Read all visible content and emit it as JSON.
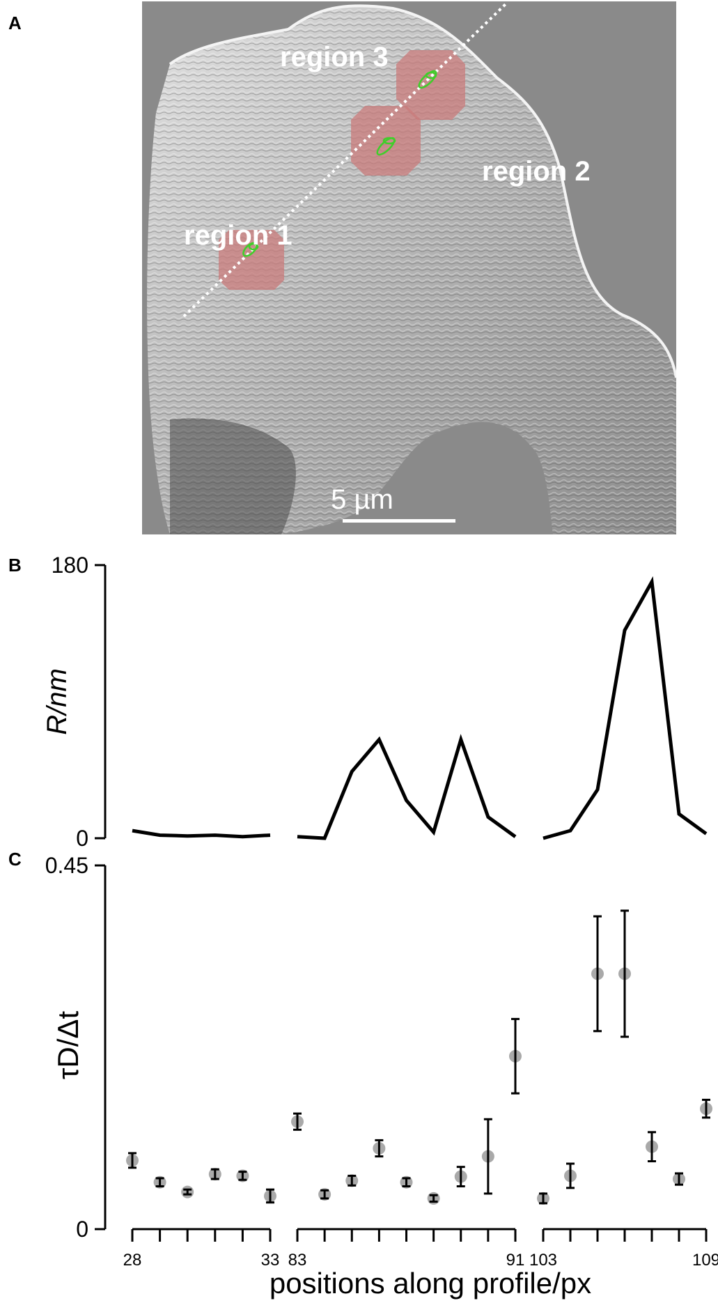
{
  "panels": {
    "a": "A",
    "b": "B",
    "c": "C"
  },
  "micrograph": {
    "regions": [
      "region 1",
      "region 2",
      "region 3"
    ],
    "scale_bar": "5 µm",
    "colors": {
      "region_fill": "#c97b7b",
      "track": "#3fcf2a",
      "profile_line": "#ffffff"
    }
  },
  "chart_data": [
    {
      "type": "line",
      "panel": "B",
      "ylabel": "R/nm",
      "ylim": [
        0,
        180
      ],
      "yticks": [
        "0",
        "180"
      ],
      "segments": [
        {
          "x": [
            28,
            29,
            30,
            31,
            32,
            33
          ],
          "y": [
            5,
            2,
            1.5,
            2,
            1,
            2
          ]
        },
        {
          "x": [
            83,
            84,
            85,
            86,
            87,
            88,
            89,
            90,
            91
          ],
          "y": [
            1,
            0,
            44,
            65,
            25,
            4,
            65,
            14,
            1
          ]
        },
        {
          "x": [
            103,
            104,
            105,
            106,
            107,
            108,
            109
          ],
          "y": [
            0,
            5,
            32,
            137,
            169,
            16,
            3
          ]
        }
      ]
    },
    {
      "type": "scatter",
      "panel": "C",
      "ylabel": "τD/Δt",
      "xlabel": "positions along profile/px",
      "ylim": [
        0,
        0.45
      ],
      "yticks": [
        "0",
        "0.45"
      ],
      "segments": [
        {
          "x": [
            28,
            29,
            30,
            31,
            32,
            33
          ],
          "y": [
            0.085,
            0.058,
            0.046,
            0.068,
            0.066,
            0.041
          ],
          "err": [
            0.009,
            0.005,
            0.003,
            0.006,
            0.005,
            0.008
          ]
        },
        {
          "x": [
            83,
            84,
            85,
            86,
            87,
            88,
            89,
            90,
            91
          ],
          "y": [
            0.133,
            0.043,
            0.06,
            0.1,
            0.058,
            0.038,
            0.065,
            0.09,
            0.214
          ],
          "err": [
            0.01,
            0.005,
            0.006,
            0.01,
            0.005,
            0.004,
            0.012,
            0.046,
            0.046
          ]
        },
        {
          "x": [
            103,
            104,
            105,
            106,
            107,
            108,
            109
          ],
          "y": [
            0.038,
            0.066,
            0.316,
            0.316,
            0.102,
            0.062,
            0.149
          ],
          "err": [
            0.006,
            0.015,
            0.071,
            0.078,
            0.018,
            0.007,
            0.011
          ]
        }
      ],
      "xtick_labels": [
        {
          "value": 28,
          "label": "28"
        },
        {
          "value": 33,
          "label": "33"
        },
        {
          "value": 83,
          "label": "83"
        },
        {
          "value": 91,
          "label": "91"
        },
        {
          "value": 103,
          "label": "103"
        },
        {
          "value": 109,
          "label": "109"
        }
      ]
    }
  ]
}
